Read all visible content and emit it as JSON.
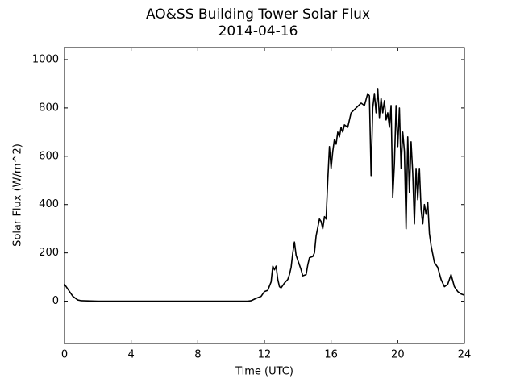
{
  "chart_data": {
    "type": "line",
    "title": "AO&SS Building Tower Solar Flux",
    "subtitle": "2014-04-16",
    "xlabel": "Time (UTC)",
    "ylabel": "Solar Flux (W/m^2)",
    "xlim": [
      0,
      24
    ],
    "xticks": [
      0,
      4,
      8,
      12,
      16,
      20,
      24
    ],
    "ylim": [
      -175,
      1050
    ],
    "yticks": [
      0,
      200,
      400,
      600,
      800,
      1000
    ],
    "grid": false,
    "x": [
      0,
      0.2,
      0.5,
      0.8,
      1,
      2,
      3,
      4,
      5,
      6,
      7,
      8,
      9,
      10,
      11,
      11.2,
      11.5,
      11.8,
      12,
      12.2,
      12.4,
      12.5,
      12.6,
      12.7,
      12.8,
      12.9,
      13.0,
      13.2,
      13.4,
      13.5,
      13.6,
      13.7,
      13.8,
      13.9,
      14.0,
      14.2,
      14.3,
      14.5,
      14.6,
      14.7,
      14.9,
      15.0,
      15.1,
      15.3,
      15.4,
      15.5,
      15.6,
      15.7,
      15.8,
      15.9,
      16.0,
      16.1,
      16.2,
      16.3,
      16.4,
      16.5,
      16.6,
      16.7,
      16.8,
      17.0,
      17.2,
      17.5,
      17.8,
      18.0,
      18.2,
      18.3,
      18.4,
      18.5,
      18.6,
      18.7,
      18.8,
      18.9,
      19.0,
      19.1,
      19.2,
      19.3,
      19.4,
      19.5,
      19.6,
      19.7,
      19.8,
      19.9,
      20.0,
      20.1,
      20.2,
      20.3,
      20.4,
      20.5,
      20.6,
      20.7,
      20.8,
      20.9,
      21.0,
      21.1,
      21.2,
      21.3,
      21.4,
      21.5,
      21.6,
      21.7,
      21.8,
      21.9,
      22.0,
      22.2,
      22.4,
      22.6,
      22.8,
      23.0,
      23.2,
      23.4,
      23.6,
      23.8,
      24
    ],
    "series": [
      {
        "name": "Solar Flux",
        "color": "#000000",
        "values": [
          70,
          50,
          20,
          5,
          2,
          0,
          0,
          0,
          0,
          0,
          0,
          0,
          0,
          0,
          0,
          2,
          12,
          20,
          40,
          45,
          80,
          145,
          130,
          145,
          90,
          60,
          55,
          75,
          90,
          110,
          140,
          200,
          245,
          190,
          170,
          130,
          105,
          110,
          150,
          180,
          185,
          200,
          270,
          340,
          330,
          300,
          350,
          340,
          500,
          640,
          550,
          620,
          670,
          650,
          700,
          680,
          720,
          700,
          730,
          720,
          780,
          800,
          820,
          810,
          860,
          850,
          520,
          800,
          860,
          780,
          880,
          760,
          840,
          780,
          830,
          750,
          780,
          720,
          810,
          430,
          570,
          810,
          640,
          800,
          550,
          700,
          620,
          300,
          680,
          450,
          660,
          530,
          320,
          550,
          420,
          550,
          380,
          320,
          400,
          360,
          410,
          280,
          230,
          160,
          140,
          90,
          60,
          70,
          110,
          60,
          40,
          30,
          25
        ]
      }
    ]
  }
}
